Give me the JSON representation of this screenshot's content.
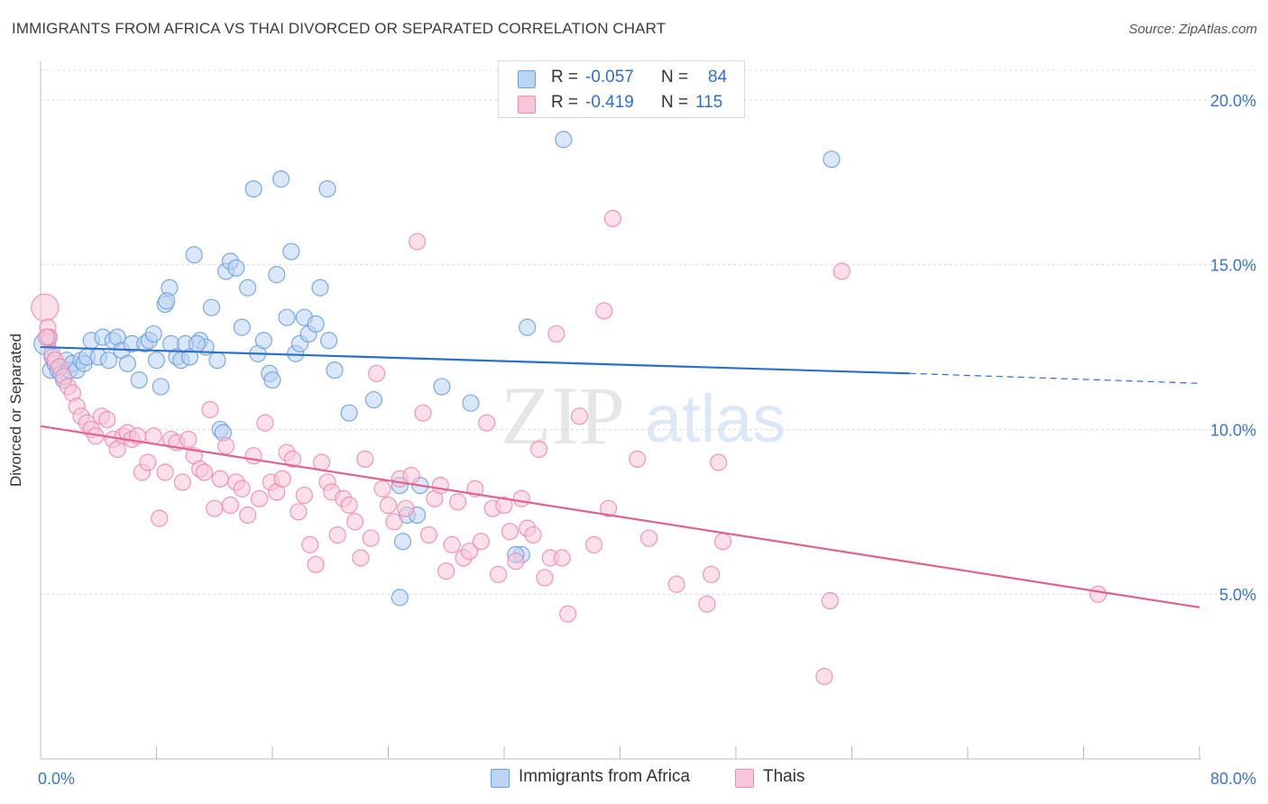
{
  "title": "IMMIGRANTS FROM AFRICA VS THAI DIVORCED OR SEPARATED CORRELATION CHART",
  "source": "Source: ZipAtlas.com",
  "watermark": {
    "zip": "ZIP",
    "atlas": "atlas"
  },
  "legend": {
    "rows": [
      {
        "r_label": "R =",
        "r_value": "-0.057",
        "n_label": "N =",
        "n_value": "84"
      },
      {
        "r_label": "R =",
        "r_value": "-0.419",
        "n_label": "N =",
        "n_value": "115"
      }
    ]
  },
  "colors": {
    "africa": "#6fa0e0",
    "africa_fill": "#bcd4f3",
    "africa_line": "#2a6fd0",
    "thai": "#f08ab0",
    "thai_fill": "#f8c6d8",
    "thai_line": "#e0628f",
    "axis_text": "#3a74c9"
  },
  "chart_data": {
    "type": "scatter",
    "title": "IMMIGRANTS FROM AFRICA VS THAI DIVORCED OR SEPARATED CORRELATION CHART",
    "xlabel": "",
    "ylabel": "Divorced or Separated",
    "xlim": [
      0,
      80
    ],
    "ylim": [
      0,
      20.9
    ],
    "x_ticks": [
      "0.0%",
      "80.0%"
    ],
    "y_ticks": [
      "5.0%",
      "10.0%",
      "15.0%",
      "20.0%"
    ],
    "y_tick_values": [
      5,
      10,
      15,
      20
    ],
    "grid": true,
    "legend_position": "top-center",
    "series": [
      {
        "name": "Immigrants from Africa",
        "trend": {
          "x": [
            0,
            60,
            80
          ],
          "y": [
            12.5,
            11.7,
            11.4
          ],
          "solid_until": 60
        },
        "points": [
          [
            0.3,
            12.6
          ],
          [
            0.5,
            12.8
          ],
          [
            0.7,
            11.8
          ],
          [
            0.8,
            12.2
          ],
          [
            1.0,
            12.0
          ],
          [
            1.2,
            11.8
          ],
          [
            1.4,
            11.7
          ],
          [
            1.6,
            11.5
          ],
          [
            1.8,
            12.1
          ],
          [
            2.0,
            11.8
          ],
          [
            2.2,
            12.0
          ],
          [
            2.5,
            11.8
          ],
          [
            2.8,
            12.1
          ],
          [
            3.0,
            12.0
          ],
          [
            3.2,
            12.2
          ],
          [
            3.5,
            12.7
          ],
          [
            4.0,
            12.2
          ],
          [
            4.3,
            12.8
          ],
          [
            4.7,
            12.1
          ],
          [
            5.0,
            12.7
          ],
          [
            5.3,
            12.8
          ],
          [
            5.6,
            12.4
          ],
          [
            6.0,
            12.0
          ],
          [
            6.3,
            12.6
          ],
          [
            6.8,
            11.5
          ],
          [
            7.2,
            12.6
          ],
          [
            7.5,
            12.7
          ],
          [
            7.8,
            12.9
          ],
          [
            8.0,
            12.1
          ],
          [
            8.3,
            11.3
          ],
          [
            8.6,
            13.8
          ],
          [
            8.9,
            14.3
          ],
          [
            9.0,
            12.6
          ],
          [
            9.4,
            12.2
          ],
          [
            9.7,
            12.1
          ],
          [
            10.0,
            12.6
          ],
          [
            10.3,
            12.2
          ],
          [
            10.6,
            15.3
          ],
          [
            11.0,
            12.7
          ],
          [
            11.4,
            12.5
          ],
          [
            11.8,
            13.7
          ],
          [
            12.2,
            12.1
          ],
          [
            12.8,
            14.8
          ],
          [
            13.1,
            15.1
          ],
          [
            13.5,
            14.9
          ],
          [
            13.9,
            13.1
          ],
          [
            14.3,
            14.3
          ],
          [
            14.7,
            17.3
          ],
          [
            15.0,
            12.3
          ],
          [
            15.4,
            12.7
          ],
          [
            15.8,
            11.7
          ],
          [
            16.0,
            11.5
          ],
          [
            16.3,
            14.7
          ],
          [
            16.6,
            17.6
          ],
          [
            17.0,
            13.4
          ],
          [
            17.3,
            15.4
          ],
          [
            17.6,
            12.3
          ],
          [
            17.9,
            12.6
          ],
          [
            18.2,
            13.4
          ],
          [
            18.5,
            12.9
          ],
          [
            19.0,
            13.2
          ],
          [
            19.3,
            14.3
          ],
          [
            19.8,
            17.3
          ],
          [
            19.9,
            12.7
          ],
          [
            20.3,
            11.8
          ],
          [
            21.3,
            10.5
          ],
          [
            23.0,
            10.9
          ],
          [
            24.8,
            8.3
          ],
          [
            25.0,
            6.6
          ],
          [
            25.3,
            7.4
          ],
          [
            26.2,
            8.3
          ],
          [
            24.8,
            4.9
          ],
          [
            26.0,
            7.4
          ],
          [
            27.7,
            11.3
          ],
          [
            29.7,
            10.8
          ],
          [
            33.2,
            6.2
          ],
          [
            32.8,
            6.2
          ],
          [
            33.6,
            13.1
          ],
          [
            36.1,
            18.8
          ],
          [
            54.6,
            18.2
          ],
          [
            8.7,
            13.9
          ],
          [
            10.8,
            12.6
          ],
          [
            12.4,
            10.0
          ],
          [
            12.6,
            9.9
          ]
        ]
      },
      {
        "name": "Thais",
        "trend": {
          "x": [
            0,
            80
          ],
          "y": [
            10.1,
            4.6
          ]
        },
        "points": [
          [
            0.3,
            13.7
          ],
          [
            0.5,
            13.1
          ],
          [
            0.6,
            12.8
          ],
          [
            0.8,
            12.3
          ],
          [
            1.0,
            12.1
          ],
          [
            1.3,
            11.9
          ],
          [
            1.6,
            11.6
          ],
          [
            1.9,
            11.3
          ],
          [
            2.2,
            11.1
          ],
          [
            2.5,
            10.7
          ],
          [
            2.8,
            10.4
          ],
          [
            3.2,
            10.2
          ],
          [
            3.5,
            10.0
          ],
          [
            3.8,
            9.8
          ],
          [
            4.2,
            10.4
          ],
          [
            4.6,
            10.3
          ],
          [
            5.0,
            9.7
          ],
          [
            5.3,
            9.4
          ],
          [
            5.7,
            9.8
          ],
          [
            6.0,
            9.9
          ],
          [
            6.3,
            9.7
          ],
          [
            6.7,
            9.8
          ],
          [
            7.0,
            8.7
          ],
          [
            7.4,
            9.0
          ],
          [
            7.8,
            9.8
          ],
          [
            8.2,
            7.3
          ],
          [
            8.6,
            8.7
          ],
          [
            9.0,
            9.7
          ],
          [
            9.4,
            9.6
          ],
          [
            9.8,
            8.4
          ],
          [
            10.2,
            9.7
          ],
          [
            10.6,
            9.2
          ],
          [
            11.0,
            8.8
          ],
          [
            11.3,
            8.7
          ],
          [
            11.7,
            10.6
          ],
          [
            12.0,
            7.6
          ],
          [
            12.4,
            8.5
          ],
          [
            12.8,
            9.5
          ],
          [
            13.1,
            7.7
          ],
          [
            13.5,
            8.4
          ],
          [
            13.9,
            8.2
          ],
          [
            14.3,
            7.4
          ],
          [
            14.7,
            9.2
          ],
          [
            15.1,
            7.9
          ],
          [
            15.5,
            10.2
          ],
          [
            15.9,
            8.4
          ],
          [
            16.3,
            8.1
          ],
          [
            16.7,
            8.5
          ],
          [
            17.0,
            9.3
          ],
          [
            17.4,
            9.1
          ],
          [
            17.8,
            7.5
          ],
          [
            18.2,
            8.0
          ],
          [
            18.6,
            6.5
          ],
          [
            19.0,
            5.9
          ],
          [
            19.4,
            9.0
          ],
          [
            19.8,
            8.4
          ],
          [
            20.1,
            8.1
          ],
          [
            20.5,
            6.8
          ],
          [
            20.9,
            7.9
          ],
          [
            21.3,
            7.7
          ],
          [
            21.7,
            7.2
          ],
          [
            22.1,
            6.1
          ],
          [
            22.4,
            9.1
          ],
          [
            22.8,
            6.7
          ],
          [
            23.2,
            11.7
          ],
          [
            23.6,
            8.2
          ],
          [
            24.0,
            7.7
          ],
          [
            24.4,
            7.2
          ],
          [
            24.8,
            8.5
          ],
          [
            25.2,
            7.6
          ],
          [
            25.6,
            8.6
          ],
          [
            26.0,
            15.7
          ],
          [
            26.4,
            10.5
          ],
          [
            26.8,
            6.8
          ],
          [
            27.2,
            7.9
          ],
          [
            27.6,
            8.3
          ],
          [
            28.0,
            5.7
          ],
          [
            28.4,
            6.5
          ],
          [
            28.8,
            7.8
          ],
          [
            29.2,
            6.1
          ],
          [
            29.6,
            6.3
          ],
          [
            30.0,
            8.2
          ],
          [
            30.4,
            6.6
          ],
          [
            30.8,
            10.2
          ],
          [
            31.2,
            7.6
          ],
          [
            31.6,
            5.6
          ],
          [
            32.0,
            7.7
          ],
          [
            32.4,
            6.9
          ],
          [
            32.8,
            6.0
          ],
          [
            33.2,
            7.9
          ],
          [
            33.6,
            7.0
          ],
          [
            34.0,
            6.8
          ],
          [
            34.4,
            9.4
          ],
          [
            34.8,
            5.5
          ],
          [
            35.2,
            6.1
          ],
          [
            35.6,
            12.9
          ],
          [
            36.0,
            6.1
          ],
          [
            36.4,
            4.4
          ],
          [
            37.2,
            10.4
          ],
          [
            38.2,
            6.5
          ],
          [
            39.2,
            7.6
          ],
          [
            39.5,
            16.4
          ],
          [
            38.9,
            13.6
          ],
          [
            41.2,
            9.1
          ],
          [
            42.0,
            6.7
          ],
          [
            43.9,
            5.3
          ],
          [
            46.0,
            4.7
          ],
          [
            46.3,
            5.6
          ],
          [
            46.8,
            9.0
          ],
          [
            47.1,
            6.6
          ],
          [
            54.1,
            2.5
          ],
          [
            54.5,
            4.8
          ],
          [
            55.3,
            14.8
          ],
          [
            73.0,
            5.0
          ],
          [
            0.4,
            12.8
          ]
        ]
      }
    ]
  },
  "bottom_legend": [
    {
      "label": "Immigrants from Africa"
    },
    {
      "label": "Thais"
    }
  ]
}
